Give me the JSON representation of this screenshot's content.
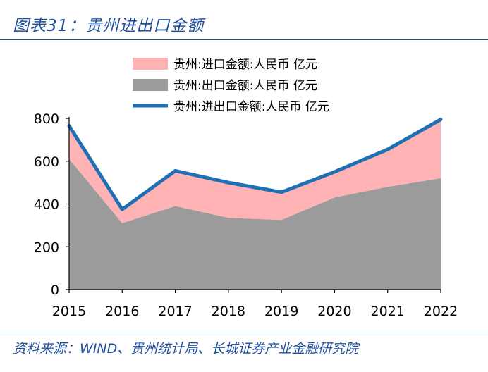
{
  "header": {
    "title": "图表31：贵州进出口金额"
  },
  "footer": {
    "source": "资料来源：WIND、贵州统计局、长城证券产业金融研究院"
  },
  "colors": {
    "import": "#ffb3b5",
    "export": "#9b9b9b",
    "total": "#1f6fb4",
    "accent": "#1f4e9c"
  },
  "chart_data": {
    "type": "area",
    "title": "贵州进出口金额",
    "categories": [
      "2015",
      "2016",
      "2017",
      "2018",
      "2019",
      "2020",
      "2021",
      "2022"
    ],
    "series": [
      {
        "name": "贵州:进口金额:人民币 亿元",
        "kind": "area-stacked",
        "values": [
          155,
          65,
          165,
          165,
          130,
          120,
          175,
          275
        ]
      },
      {
        "name": "贵州:出口金额:人民币 亿元",
        "kind": "area-base",
        "values": [
          610,
          310,
          390,
          335,
          325,
          430,
          480,
          520
        ]
      },
      {
        "name": "贵州:进出口金额:人民币 亿元",
        "kind": "line",
        "values": [
          765,
          375,
          555,
          500,
          455,
          550,
          655,
          795
        ]
      }
    ],
    "yticks": [
      "0",
      "200",
      "400",
      "600",
      "800"
    ],
    "ylim": [
      0,
      800
    ],
    "xlabel": "",
    "ylabel": "",
    "legend_position": "top"
  }
}
